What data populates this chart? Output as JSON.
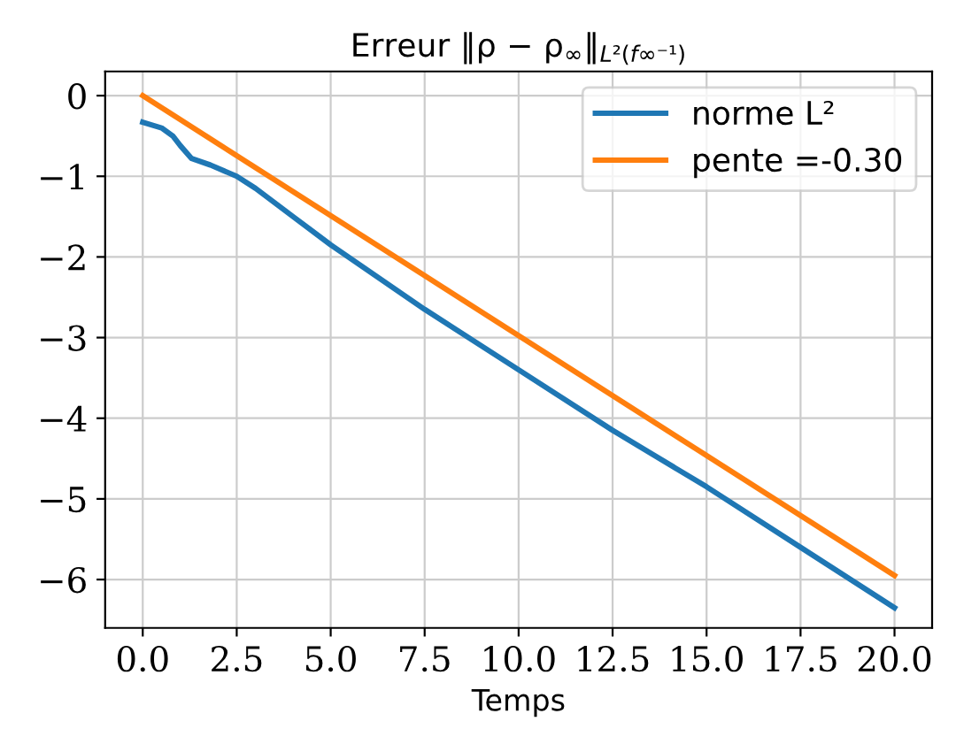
{
  "chart_data": {
    "type": "line",
    "title": "Erreur ‖ρ − ρ$_{∞}$‖$_{L²(f∞⁻¹)}$",
    "xlabel": "Temps",
    "series": [
      {
        "name": "norme L²",
        "color": "#1f77b4",
        "x": [
          0,
          0.5,
          0.8,
          1.0,
          1.3,
          1.8,
          2.5,
          3,
          4,
          5,
          7.5,
          10,
          12.5,
          15,
          17.5,
          20
        ],
        "values": [
          -0.33,
          -0.4,
          -0.5,
          -0.62,
          -0.78,
          -0.86,
          -1.0,
          -1.15,
          -1.5,
          -1.85,
          -2.65,
          -3.4,
          -4.15,
          -4.85,
          -5.6,
          -6.35
        ]
      },
      {
        "name": "pente =-0.30",
        "color": "#ff7f0e",
        "x": [
          0,
          20
        ],
        "values": [
          0,
          -5.95
        ]
      }
    ],
    "xlim": [
      -1,
      21
    ],
    "ylim": [
      -6.6,
      0.3
    ],
    "xticks": [
      {
        "value": 0,
        "label": "0.0"
      },
      {
        "value": 2.5,
        "label": "2.5"
      },
      {
        "value": 5,
        "label": "5.0"
      },
      {
        "value": 7.5,
        "label": "7.5"
      },
      {
        "value": 10,
        "label": "10.0"
      },
      {
        "value": 12.5,
        "label": "12.5"
      },
      {
        "value": 15,
        "label": "15.0"
      },
      {
        "value": 17.5,
        "label": "17.5"
      },
      {
        "value": 20,
        "label": "20.0"
      }
    ],
    "yticks": [
      0,
      -1,
      -2,
      -3,
      -4,
      -5,
      -6
    ],
    "grid": true,
    "legend": "top right"
  }
}
